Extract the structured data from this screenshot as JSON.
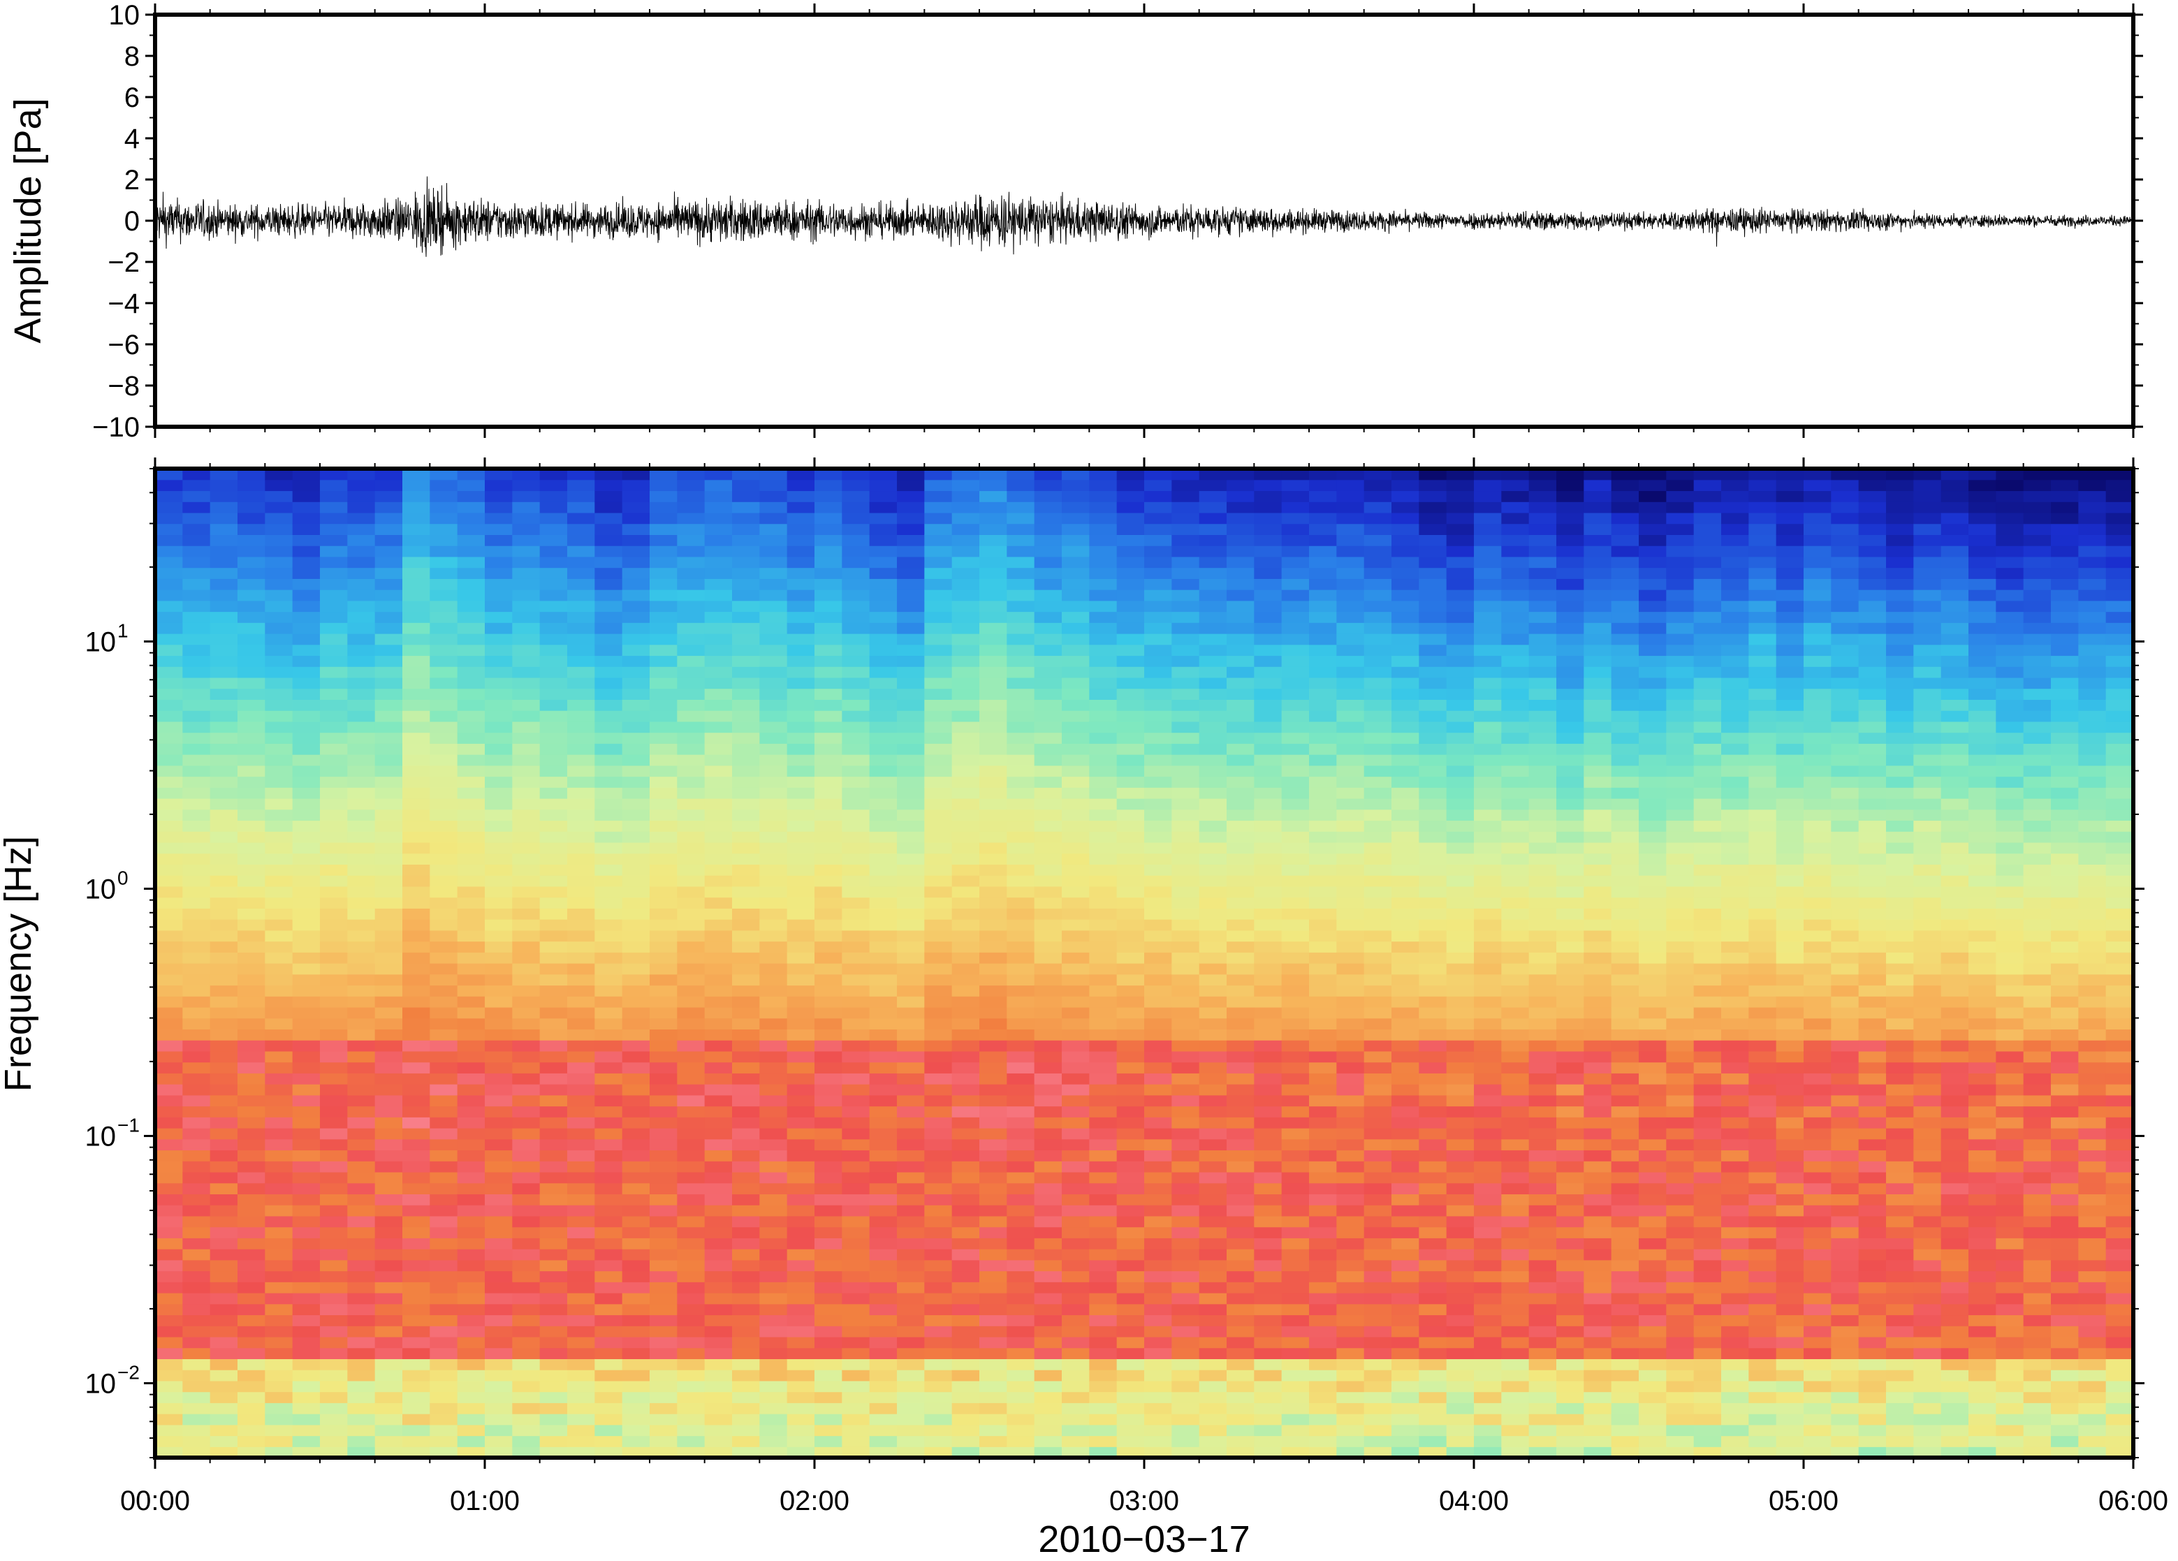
{
  "chart_data": [
    {
      "type": "line",
      "name": "waveform",
      "ylabel": "Amplitude [Pa]",
      "ylim": [
        -10,
        10
      ],
      "y_ticks": [
        {
          "value": 10,
          "label": "10"
        },
        {
          "value": 8,
          "label": "8"
        },
        {
          "value": 6,
          "label": "6"
        },
        {
          "value": 4,
          "label": "4"
        },
        {
          "value": 2,
          "label": "2"
        },
        {
          "value": 0,
          "label": "0"
        },
        {
          "value": -2,
          "label": "−2"
        },
        {
          "value": -4,
          "label": "−4"
        },
        {
          "value": -6,
          "label": "−6"
        },
        {
          "value": -8,
          "label": "−8"
        },
        {
          "value": -10,
          "label": "−10"
        }
      ],
      "xlim": [
        "00:00",
        "06:00"
      ],
      "envelope": {
        "x_hours": [
          0,
          0.25,
          0.5,
          0.75,
          0.8,
          1.0,
          1.25,
          1.5,
          1.7,
          2.0,
          2.3,
          2.55,
          2.65,
          3.0,
          3.2,
          3.5,
          3.9,
          4.2,
          4.5,
          4.8,
          5.2,
          5.5,
          6.0
        ],
        "amplitude_pa": [
          1.4,
          1.0,
          1.0,
          1.3,
          2.0,
          1.3,
          1.0,
          1.1,
          1.4,
          1.2,
          1.0,
          1.8,
          1.5,
          1.0,
          0.9,
          0.7,
          0.5,
          0.6,
          0.5,
          0.8,
          0.6,
          0.4,
          0.3
        ]
      }
    },
    {
      "type": "heatmap",
      "name": "spectrogram",
      "ylabel": "Frequency [Hz]",
      "xlabel": "2010−03−17",
      "y_scale": "log",
      "ylim": [
        0.005,
        50
      ],
      "y_ticks": [
        {
          "value": 10,
          "base": "10",
          "exp": "1"
        },
        {
          "value": 1,
          "base": "10",
          "exp": "0"
        },
        {
          "value": 0.1,
          "base": "10",
          "exp": "−1"
        },
        {
          "value": 0.01,
          "base": "10",
          "exp": "−2"
        }
      ],
      "x_ticks": [
        "00:00",
        "01:00",
        "02:00",
        "03:00",
        "04:00",
        "05:00",
        "06:00"
      ],
      "colormap": [
        "#0a0a6e",
        "#1a2fcf",
        "#2a7fe8",
        "#38c8e8",
        "#7ee8c0",
        "#d8f2a0",
        "#f2e87e",
        "#f7b35a",
        "#f28040",
        "#ef5050",
        "#f87f8a"
      ],
      "time_columns": 72
    }
  ]
}
